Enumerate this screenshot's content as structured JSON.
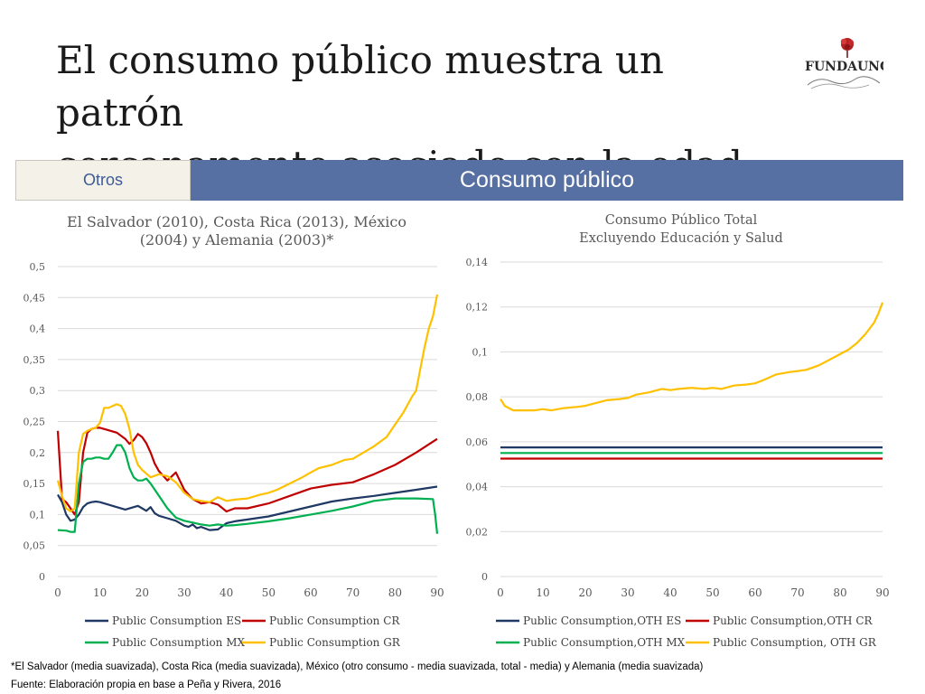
{
  "slide": {
    "title_line1": "El consumo público muestra un patrón",
    "title_line2": "cercanamente asociado con la edad",
    "logo_text": "FUNDAUNGO"
  },
  "tabs": {
    "inactive": "Otros",
    "active": "Consumo público"
  },
  "colors": {
    "ES": "#1f3864",
    "CR": "#c00000",
    "MX": "#00b050",
    "GR": "#ffc000",
    "tab_active": "#5670a3"
  },
  "chart_data": [
    {
      "type": "line",
      "title": "El Salvador (2010), Costa Rica (2013), México (2004) y Alemania (2003)*",
      "title_line1": "El Salvador (2010), Costa Rica (2013), México",
      "title_line2": "(2004) y Alemania (2003)*",
      "xlim": [
        0,
        90
      ],
      "ylim": [
        0,
        0.5
      ],
      "x_ticks": [
        0,
        10,
        20,
        30,
        40,
        50,
        60,
        70,
        80,
        90
      ],
      "x_tick_labels": [
        "0",
        "10",
        "20",
        "30",
        "40",
        "50",
        "60",
        "70",
        "80",
        "90"
      ],
      "y_ticks": [
        0,
        0.05,
        0.1,
        0.15,
        0.2,
        0.25,
        0.3,
        0.35,
        0.4,
        0.45,
        0.5
      ],
      "y_tick_labels": [
        "0",
        "0,05",
        "0,1",
        "0,15",
        "0,2",
        "0,25",
        "0,3",
        "0,35",
        "0,4",
        "0,45",
        "0,5"
      ],
      "grid": true,
      "legend_position": "bottom",
      "series": [
        {
          "name": "Public Consumption ES",
          "color": "#1f3864",
          "x": [
            0,
            1,
            2,
            3,
            4,
            5,
            6,
            7,
            8,
            9,
            10,
            12,
            14,
            16,
            18,
            19,
            20,
            21,
            22,
            23,
            24,
            26,
            28,
            30,
            31,
            32,
            33,
            34,
            36,
            38,
            40,
            42,
            45,
            50,
            55,
            60,
            65,
            70,
            75,
            80,
            85,
            90
          ],
          "y": [
            0.132,
            0.12,
            0.1,
            0.09,
            0.092,
            0.1,
            0.112,
            0.118,
            0.12,
            0.121,
            0.12,
            0.116,
            0.112,
            0.108,
            0.112,
            0.114,
            0.11,
            0.106,
            0.112,
            0.102,
            0.098,
            0.094,
            0.09,
            0.082,
            0.08,
            0.084,
            0.078,
            0.08,
            0.075,
            0.076,
            0.086,
            0.089,
            0.092,
            0.097,
            0.105,
            0.113,
            0.121,
            0.126,
            0.13,
            0.135,
            0.14,
            0.145
          ]
        },
        {
          "name": "Public Consumption CR",
          "color": "#c00000",
          "x": [
            0,
            1,
            2,
            3,
            4,
            5,
            6,
            7,
            8,
            9,
            10,
            12,
            14,
            16,
            17,
            18,
            19,
            20,
            21,
            22,
            23,
            24,
            26,
            28,
            30,
            32,
            34,
            36,
            38,
            40,
            42,
            45,
            50,
            55,
            60,
            65,
            70,
            75,
            80,
            85,
            90
          ],
          "y": [
            0.235,
            0.125,
            0.12,
            0.11,
            0.1,
            0.12,
            0.2,
            0.232,
            0.238,
            0.24,
            0.24,
            0.236,
            0.232,
            0.222,
            0.214,
            0.22,
            0.23,
            0.225,
            0.215,
            0.2,
            0.182,
            0.17,
            0.155,
            0.168,
            0.14,
            0.125,
            0.118,
            0.12,
            0.116,
            0.105,
            0.11,
            0.11,
            0.118,
            0.13,
            0.142,
            0.148,
            0.152,
            0.165,
            0.18,
            0.2,
            0.222
          ]
        },
        {
          "name": "Public Consumption MX",
          "color": "#00b050",
          "x": [
            0,
            2,
            3,
            4,
            5,
            6,
            7,
            8,
            9,
            10,
            11,
            12,
            13,
            14,
            15,
            16,
            17,
            18,
            19,
            20,
            21,
            22,
            24,
            26,
            28,
            30,
            32,
            34,
            36,
            38,
            40,
            42,
            45,
            50,
            55,
            60,
            65,
            70,
            75,
            80,
            85,
            89,
            89.5,
            90
          ],
          "y": [
            0.075,
            0.074,
            0.072,
            0.072,
            0.15,
            0.185,
            0.19,
            0.19,
            0.192,
            0.192,
            0.19,
            0.19,
            0.2,
            0.212,
            0.212,
            0.2,
            0.175,
            0.16,
            0.155,
            0.155,
            0.158,
            0.15,
            0.13,
            0.11,
            0.095,
            0.09,
            0.087,
            0.084,
            0.082,
            0.084,
            0.082,
            0.083,
            0.085,
            0.089,
            0.094,
            0.1,
            0.106,
            0.113,
            0.122,
            0.126,
            0.126,
            0.125,
            0.1,
            0.069
          ]
        },
        {
          "name": "Public Consumption GR",
          "color": "#ffc000",
          "x": [
            0,
            1,
            2,
            3,
            4,
            5,
            6,
            7,
            8,
            9,
            10,
            11,
            12,
            13,
            14,
            15,
            16,
            17,
            18,
            19,
            20,
            22,
            24,
            26,
            28,
            30,
            32,
            34,
            36,
            38,
            40,
            42,
            45,
            48,
            50,
            52,
            55,
            58,
            60,
            62,
            65,
            68,
            70,
            72,
            75,
            78,
            80,
            82,
            84,
            85,
            86,
            87,
            88,
            89,
            90
          ],
          "y": [
            0.155,
            0.13,
            0.11,
            0.105,
            0.11,
            0.2,
            0.23,
            0.235,
            0.238,
            0.24,
            0.248,
            0.272,
            0.272,
            0.275,
            0.278,
            0.275,
            0.262,
            0.238,
            0.2,
            0.18,
            0.172,
            0.16,
            0.165,
            0.162,
            0.152,
            0.135,
            0.125,
            0.122,
            0.12,
            0.128,
            0.122,
            0.124,
            0.126,
            0.132,
            0.135,
            0.14,
            0.15,
            0.16,
            0.168,
            0.175,
            0.18,
            0.188,
            0.19,
            0.198,
            0.21,
            0.225,
            0.245,
            0.265,
            0.29,
            0.3,
            0.335,
            0.37,
            0.4,
            0.42,
            0.455
          ]
        }
      ]
    },
    {
      "type": "line",
      "title": "Consumo Público Total Excluyendo Educación y Salud",
      "title_line1": "Consumo Público Total",
      "title_line2": "Excluyendo Educación y Salud",
      "xlim": [
        0,
        90
      ],
      "ylim": [
        0,
        0.14
      ],
      "x_ticks": [
        0,
        10,
        20,
        30,
        40,
        50,
        60,
        70,
        80,
        90
      ],
      "x_tick_labels": [
        "0",
        "10",
        "20",
        "30",
        "40",
        "50",
        "60",
        "70",
        "80",
        "90"
      ],
      "y_ticks": [
        0,
        0.02,
        0.04,
        0.06,
        0.08,
        0.1,
        0.12,
        0.14
      ],
      "y_tick_labels": [
        "0",
        "0,02",
        "0,04",
        "0,06",
        "0,08",
        "0,1",
        "0,12",
        "0,14"
      ],
      "grid": true,
      "legend_position": "bottom",
      "series": [
        {
          "name": "Public Consumption,OTH ES",
          "color": "#1f3864",
          "x": [
            0,
            90
          ],
          "y": [
            0.0575,
            0.0575
          ]
        },
        {
          "name": "Public Consumption,OTH CR",
          "color": "#c00000",
          "x": [
            0,
            90
          ],
          "y": [
            0.0525,
            0.0525
          ]
        },
        {
          "name": "Public Consumption,OTH MX",
          "color": "#00b050",
          "x": [
            0,
            90
          ],
          "y": [
            0.055,
            0.055
          ]
        },
        {
          "name": "Public Consumption, OTH GR",
          "color": "#ffc000",
          "x": [
            0,
            1,
            2,
            3,
            5,
            8,
            10,
            12,
            15,
            18,
            20,
            22,
            25,
            28,
            30,
            32,
            35,
            38,
            40,
            42,
            45,
            48,
            50,
            52,
            55,
            58,
            60,
            62,
            65,
            68,
            70,
            72,
            75,
            78,
            80,
            82,
            84,
            86,
            88,
            89,
            90
          ],
          "y": [
            0.079,
            0.076,
            0.075,
            0.074,
            0.074,
            0.074,
            0.0745,
            0.074,
            0.075,
            0.0755,
            0.076,
            0.077,
            0.0785,
            0.079,
            0.0795,
            0.081,
            0.082,
            0.0835,
            0.083,
            0.0835,
            0.084,
            0.0835,
            0.084,
            0.0835,
            0.085,
            0.0855,
            0.086,
            0.0875,
            0.09,
            0.091,
            0.0915,
            0.092,
            0.094,
            0.097,
            0.099,
            0.101,
            0.104,
            0.108,
            0.113,
            0.117,
            0.122
          ]
        }
      ]
    }
  ],
  "footnote": "*El Salvador (media suavizada), Costa Rica (media suavizada), México (otro consumo - media suavizada, total - media) y Alemania (media suavizada)",
  "source": "Fuente: Elaboración propia en base a Peña y Rivera, 2016"
}
